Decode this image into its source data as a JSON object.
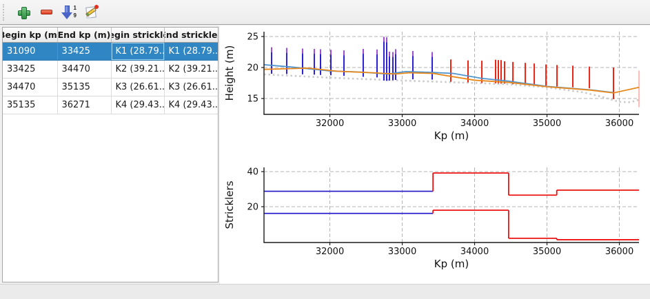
{
  "toolbar": {
    "buttons": [
      {
        "name": "add",
        "icon": "plus-icon"
      },
      {
        "name": "remove",
        "icon": "minus-icon"
      },
      {
        "name": "sort",
        "icon": "sort-numeric-icon"
      },
      {
        "name": "edit",
        "icon": "edit-pencil-icon"
      }
    ],
    "sort_digit_top": "1",
    "sort_digit_bottom": "9"
  },
  "table": {
    "headers": [
      "Begin kp (m)",
      "End kp (m)",
      "Begin strickler",
      "End strickler"
    ],
    "rows": [
      [
        "31090",
        "33425",
        "K1 (28.79...",
        "K1 (28.79..."
      ],
      [
        "33425",
        "34470",
        "K2 (39.21...",
        "K2 (39.21..."
      ],
      [
        "34470",
        "35135",
        "K3 (26.61...",
        "K3 (26.61..."
      ],
      [
        "35135",
        "36271",
        "K4 (29.43...",
        "K4 (29.43..."
      ]
    ],
    "selected_row_index": 0,
    "focused_cell": {
      "row": 0,
      "col": 2
    },
    "selection_color": "#3086c3"
  },
  "chart_data": [
    {
      "type": "line",
      "title": "",
      "xlabel": "Kp (m)",
      "ylabel": "Height (m)",
      "xlim": [
        31090,
        36271
      ],
      "ylim": [
        12.44,
        25.78
      ],
      "xticks": [
        32000,
        33000,
        34000,
        35000,
        36000
      ],
      "yticks": [
        15,
        20,
        25
      ],
      "grid": true,
      "legend": false,
      "series": [
        {
          "name": "ground-dotted-line",
          "type": "dots",
          "color": "#cbcbcb",
          "points": [
            [
              31090,
              18.9
            ],
            [
              32000,
              18.35
            ],
            [
              33000,
              17.9
            ],
            [
              34000,
              17.5
            ],
            [
              34470,
              17.3
            ],
            [
              35000,
              16.8
            ],
            [
              35500,
              16.0
            ],
            [
              35750,
              15.3
            ],
            [
              36000,
              14.45
            ],
            [
              36150,
              14.4
            ],
            [
              36271,
              14.8
            ]
          ]
        },
        {
          "name": "cross-sections-selected-range",
          "type": "spikes",
          "color": "#2a1ed6",
          "cap": 0.8,
          "cap_color": "#a24fd3",
          "points": [
            [
              31195,
              19.0,
              23.25
            ],
            [
              31404,
              18.95,
              23.15
            ],
            [
              31623,
              18.9,
              23.05
            ],
            [
              31785,
              18.85,
              23.0
            ],
            [
              31871,
              18.8,
              22.95
            ],
            [
              32014,
              18.75,
              22.85
            ],
            [
              32195,
              18.65,
              22.75
            ],
            [
              32461,
              18.5,
              23.0
            ],
            [
              32652,
              18.4,
              22.9
            ],
            [
              32747,
              17.9,
              24.95
            ],
            [
              32785,
              17.85,
              24.85
            ],
            [
              32823,
              17.9,
              22.55
            ],
            [
              32871,
              17.95,
              22.5
            ],
            [
              32909,
              18.0,
              22.95
            ],
            [
              33147,
              18.1,
              22.65
            ],
            [
              33414,
              18.05,
              22.5
            ]
          ]
        },
        {
          "name": "cross-sections-other",
          "type": "spikes",
          "color": "#ee2211",
          "points": [
            [
              33671,
              17.7,
              21.3
            ],
            [
              33909,
              17.6,
              21.15
            ],
            [
              34100,
              17.5,
              21.1
            ],
            [
              34290,
              17.45,
              21.25
            ],
            [
              34328,
              17.45,
              21.2
            ],
            [
              34366,
              17.4,
              21.2
            ],
            [
              34414,
              17.4,
              21.0
            ],
            [
              34529,
              17.3,
              20.9
            ],
            [
              34700,
              17.2,
              20.75
            ],
            [
              34824,
              17.15,
              20.65
            ],
            [
              34986,
              17.05,
              20.5
            ],
            [
              35138,
              16.95,
              20.4
            ],
            [
              35357,
              16.8,
              20.3
            ],
            [
              35586,
              16.65,
              20.15
            ],
            [
              35919,
              14.9,
              20.0
            ],
            [
              36272,
              13.6,
              19.5,
              0.3
            ]
          ]
        },
        {
          "name": "water-line-blue",
          "type": "line",
          "color": "#4f94cd",
          "points": [
            [
              31090,
              20.45
            ],
            [
              31500,
              20.05
            ],
            [
              32000,
              19.45
            ],
            [
              32450,
              19.25
            ],
            [
              32800,
              18.95
            ],
            [
              33050,
              19.35
            ],
            [
              33425,
              19.2
            ],
            [
              33700,
              19.05
            ],
            [
              34100,
              18.25
            ],
            [
              34470,
              17.8
            ],
            [
              35000,
              16.95
            ],
            [
              35600,
              16.4
            ],
            [
              35919,
              15.95
            ]
          ]
        },
        {
          "name": "water-line-orange",
          "type": "line",
          "color": "#e8881c",
          "points": [
            [
              31090,
              19.7
            ],
            [
              31700,
              19.9
            ],
            [
              32100,
              19.4
            ],
            [
              32600,
              19.15
            ],
            [
              32900,
              18.95
            ],
            [
              33100,
              19.15
            ],
            [
              33425,
              19.05
            ],
            [
              34000,
              17.95
            ],
            [
              34470,
              17.6
            ],
            [
              35000,
              16.9
            ],
            [
              35600,
              16.35
            ],
            [
              35919,
              15.9
            ],
            [
              36271,
              16.8
            ]
          ]
        }
      ]
    },
    {
      "type": "step",
      "title": "",
      "xlabel": "Kp (m)",
      "ylabel": "Stricklers",
      "xlim": [
        31090,
        36271
      ],
      "ylim": [
        -0.4,
        42.4
      ],
      "xticks": [
        32000,
        33000,
        34000,
        35000,
        36000
      ],
      "yticks": [
        20,
        40
      ],
      "grid": true,
      "legend": false,
      "series": [
        {
          "name": "strickler-major-bed",
          "type": "steps",
          "segments": [
            [
              31090,
              33425,
              28.79,
              "#2b22cc"
            ],
            [
              33425,
              34470,
              39.21,
              "#ee1111"
            ],
            [
              34470,
              35135,
              26.61,
              "#ee1111"
            ],
            [
              35135,
              36271,
              29.43,
              "#ee1111"
            ]
          ]
        },
        {
          "name": "strickler-minor-bed",
          "type": "steps",
          "segments": [
            [
              31090,
              33425,
              16.2,
              "#2b22cc"
            ],
            [
              33425,
              34470,
              18.0,
              "#ee1111"
            ],
            [
              34470,
              35135,
              2.0,
              "#ee1111"
            ],
            [
              35135,
              36271,
              1.2,
              "#ee1111"
            ]
          ]
        }
      ]
    }
  ],
  "colors": {
    "selection": "#3086c3",
    "spike_selected": "#2a1ed6",
    "spike_other": "#ee2211",
    "line_blue": "#4f94cd",
    "line_orange": "#e8881c",
    "ground_dotted": "#cbcbcb",
    "grid": "#b3b3b3"
  }
}
